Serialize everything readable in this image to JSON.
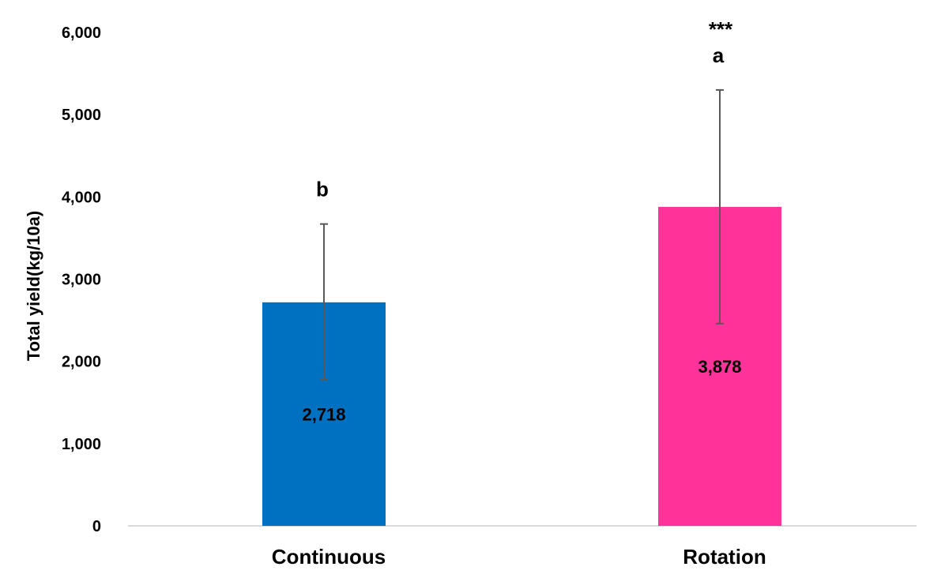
{
  "chart_data": {
    "type": "bar",
    "title": "",
    "xlabel": "",
    "ylabel": "Total yield(kg/10a)",
    "ylim": [
      0,
      6000
    ],
    "y_ticks": [
      0,
      1000,
      2000,
      3000,
      4000,
      5000,
      6000
    ],
    "y_tick_labels": [
      "0",
      "1,000",
      "2,000",
      "3,000",
      "4,000",
      "5,000",
      "6,000"
    ],
    "grid": false,
    "legend": "none",
    "categories": [
      "Continuous",
      "Rotation"
    ],
    "values": [
      2718,
      3878
    ],
    "value_labels": [
      "2,718",
      "3,878"
    ],
    "error_bars": [
      {
        "lower": 1780,
        "upper": 3670
      },
      {
        "lower": 2460,
        "upper": 5300
      }
    ],
    "significance_letters": [
      "b",
      "a"
    ],
    "significance_stars": "***",
    "colors": [
      "#0070C0",
      "#FF3399"
    ],
    "axis_color": "#D9D9D9",
    "error_bar_color": "#595959"
  }
}
